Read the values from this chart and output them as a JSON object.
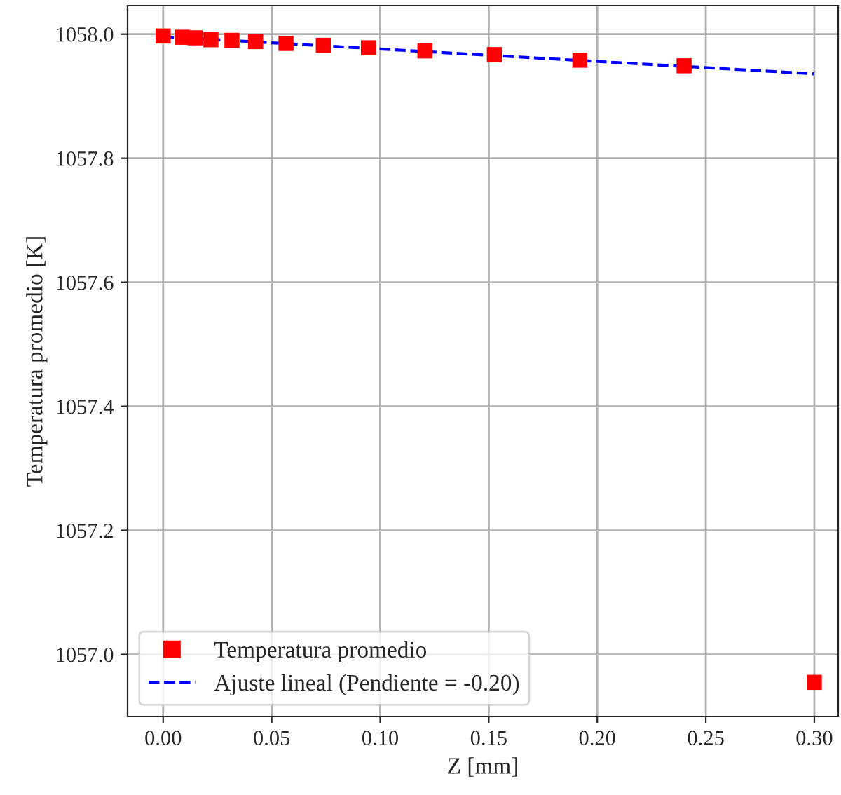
{
  "chart_data": {
    "type": "scatter",
    "xlabel": "Z [mm]",
    "ylabel": "Temperatura promedio [K]",
    "series": [
      {
        "name": "Temperatura promedio",
        "color": "#ff0000",
        "marker": "square",
        "x": [
          0.0,
          0.0087,
          0.0147,
          0.022,
          0.0317,
          0.0426,
          0.0566,
          0.0738,
          0.0946,
          0.1206,
          0.1526,
          0.192,
          0.24,
          0.3
        ],
        "values": [
          1057.997,
          1057.995,
          1057.994,
          1057.991,
          1057.99,
          1057.988,
          1057.985,
          1057.982,
          1057.978,
          1057.973,
          1057.967,
          1057.958,
          1057.949,
          1056.955
        ]
      },
      {
        "name": "Ajuste lineal (Pendiente = -0.20)",
        "type": "line",
        "color": "#0000ff",
        "line_style": "dashed",
        "marker": "none",
        "x": [
          0.0,
          0.3
        ],
        "values": [
          1057.996,
          1057.936
        ]
      }
    ],
    "xlim": [
      -0.0164,
      0.311
    ],
    "ylim": [
      1056.9,
      1058.046
    ],
    "xticks": [
      {
        "value": 0.0,
        "label": "0.00"
      },
      {
        "value": 0.05,
        "label": "0.05"
      },
      {
        "value": 0.1,
        "label": "0.10"
      },
      {
        "value": 0.15,
        "label": "0.15"
      },
      {
        "value": 0.2,
        "label": "0.20"
      },
      {
        "value": 0.25,
        "label": "0.25"
      },
      {
        "value": 0.3,
        "label": "0.30"
      }
    ],
    "yticks": [
      {
        "value": 1057.0,
        "label": "1057.0"
      },
      {
        "value": 1057.2,
        "label": "1057.2"
      },
      {
        "value": 1057.4,
        "label": "1057.4"
      },
      {
        "value": 1057.6,
        "label": "1057.6"
      },
      {
        "value": 1057.8,
        "label": "1057.8"
      },
      {
        "value": 1058.0,
        "label": "1058.0"
      }
    ],
    "grid": true,
    "legend": "bottom left"
  }
}
